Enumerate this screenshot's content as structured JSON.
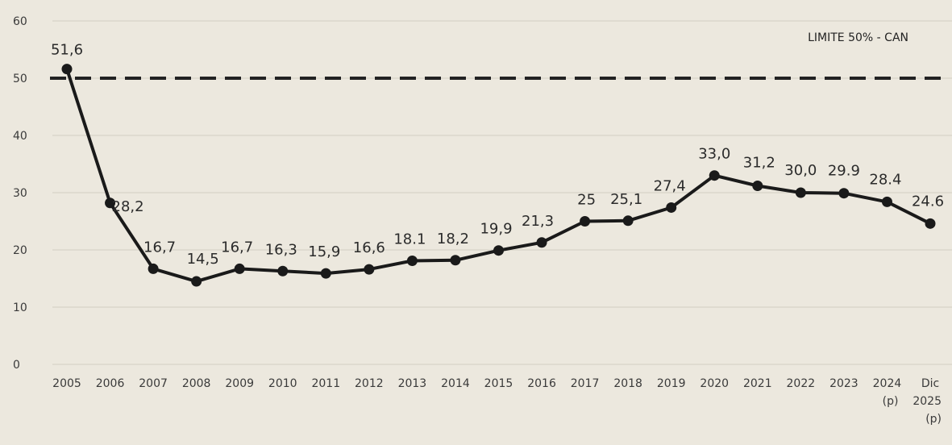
{
  "chart_data": {
    "type": "line",
    "title": "",
    "xlabel": "",
    "ylabel": "",
    "ylim": [
      0,
      60
    ],
    "yticks": [
      "0",
      "10",
      "20",
      "30",
      "40",
      "50",
      "60"
    ],
    "grid": true,
    "line_color": "#1a1a1a",
    "reference_line": {
      "value": 50,
      "label": "LIMITE 50% - CAN",
      "style": "dashed"
    },
    "categories": [
      [
        "2005"
      ],
      [
        "2006"
      ],
      [
        "2007"
      ],
      [
        "2008"
      ],
      [
        "2009"
      ],
      [
        "2010"
      ],
      [
        "2011"
      ],
      [
        "2012"
      ],
      [
        "2013"
      ],
      [
        "2014"
      ],
      [
        "2015"
      ],
      [
        "2016"
      ],
      [
        "2017"
      ],
      [
        "2018"
      ],
      [
        "2019"
      ],
      [
        "2020"
      ],
      [
        "2021"
      ],
      [
        "2022"
      ],
      [
        "2023"
      ],
      [
        "2024",
        "(p)"
      ],
      [
        "Dic",
        "2025",
        "(p)"
      ]
    ],
    "values": [
      51.6,
      28.2,
      16.7,
      14.5,
      16.7,
      16.3,
      15.9,
      16.6,
      18.1,
      18.2,
      19.9,
      21.3,
      25,
      25.1,
      27.4,
      33.0,
      31.2,
      30.0,
      29.9,
      28.4,
      24.6
    ],
    "data_labels": [
      "51,6",
      "28,2",
      "16,7",
      "14,5",
      "16,7",
      "16,3",
      "15,9",
      "16,6",
      "18.1",
      "18,2",
      "19,9",
      "21,3",
      "25",
      "25,1",
      "27,4",
      "33,0",
      "31,2",
      "30,0",
      "29.9",
      "28.4",
      "24.6"
    ]
  }
}
